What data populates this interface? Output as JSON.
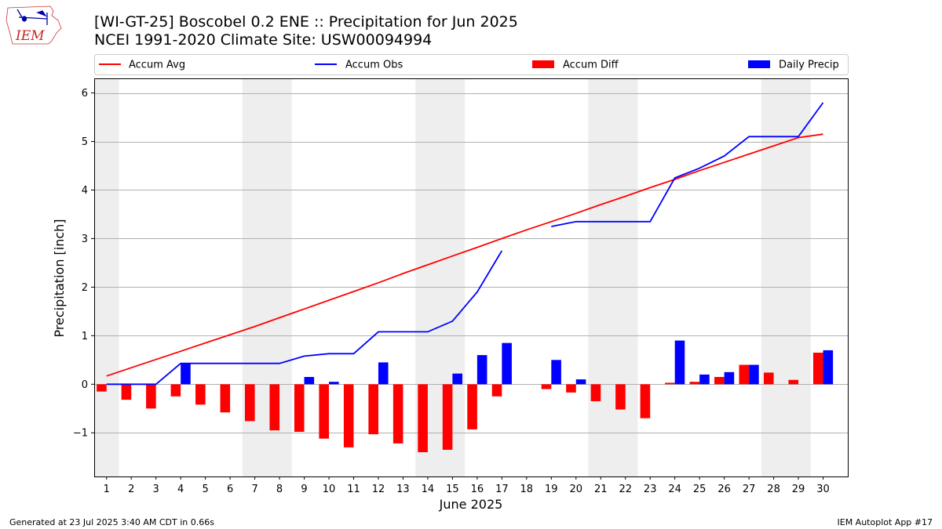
{
  "header": {
    "title": "[WI-GT-25] Boscobel 0.2 ENE :: Precipitation for Jun 2025",
    "subtitle": "NCEI 1991-2020 Climate Site: USW00094994"
  },
  "logo": {
    "text": "IEM",
    "icon": "iowa-state-outline-logo"
  },
  "footer": {
    "generated": "Generated at 23 Jul 2025 3:40 AM CDT in 0.66s",
    "app": "IEM Autoplot App #17"
  },
  "colors": {
    "avg": "#ff0000",
    "obs": "#0000ff",
    "diff": "#ff0000",
    "daily": "#0000ff",
    "weekend_band": "#eeeeee",
    "grid": "#b0b0b0"
  },
  "chart_data": {
    "type": "bar",
    "title": "[WI-GT-25] Boscobel 0.2 ENE :: Precipitation for Jun 2025",
    "xlabel": "June 2025",
    "ylabel": "Precipitation [inch]",
    "xlim": [
      0.5,
      31
    ],
    "ylim": [
      -1.9,
      6.3
    ],
    "x": [
      1,
      2,
      3,
      4,
      5,
      6,
      7,
      8,
      9,
      10,
      11,
      12,
      13,
      14,
      15,
      16,
      17,
      18,
      19,
      20,
      21,
      22,
      23,
      24,
      25,
      26,
      27,
      28,
      29,
      30
    ],
    "x_tick_labels": [
      "1",
      "2",
      "3",
      "4",
      "5",
      "6",
      "7",
      "8",
      "9",
      "10",
      "11",
      "12",
      "13",
      "14",
      "15",
      "16",
      "17",
      "18",
      "19",
      "20",
      "21",
      "22",
      "23",
      "24",
      "25",
      "26",
      "27",
      "28",
      "29",
      "30"
    ],
    "y_ticks": [
      -1,
      0,
      1,
      2,
      3,
      4,
      5,
      6
    ],
    "y_tick_labels": [
      "−1",
      "0",
      "1",
      "2",
      "3",
      "4",
      "5",
      "6"
    ],
    "grid": "y",
    "legend_position": "top",
    "shaded_weekend_ranges": [
      [
        0.5,
        1.5
      ],
      [
        6.5,
        8.5
      ],
      [
        13.5,
        15.5
      ],
      [
        20.5,
        22.5
      ],
      [
        27.5,
        29.5
      ]
    ],
    "series": [
      {
        "name": "Accum Avg",
        "kind": "line",
        "color": "#ff0000",
        "values": [
          0.17,
          0.34,
          0.51,
          0.68,
          0.85,
          1.02,
          1.19,
          1.37,
          1.55,
          1.73,
          1.91,
          2.09,
          2.28,
          2.46,
          2.64,
          2.82,
          3.0,
          3.18,
          3.35,
          3.52,
          3.7,
          3.87,
          4.05,
          4.22,
          4.4,
          4.57,
          4.74,
          4.91,
          5.08,
          5.15
        ]
      },
      {
        "name": "Accum Obs",
        "kind": "line",
        "color": "#0000ff",
        "values": [
          0.0,
          0.0,
          0.0,
          0.43,
          0.43,
          0.43,
          0.43,
          0.43,
          0.58,
          0.63,
          0.63,
          1.08,
          1.08,
          1.08,
          1.3,
          1.9,
          2.75,
          null,
          3.25,
          3.35,
          3.35,
          3.35,
          3.35,
          4.25,
          4.45,
          4.7,
          5.1,
          5.1,
          5.1,
          5.8
        ]
      },
      {
        "name": "Accum Diff",
        "kind": "bar",
        "color": "#ff0000",
        "values": [
          -0.15,
          -0.32,
          -0.5,
          -0.25,
          -0.42,
          -0.58,
          -0.76,
          -0.95,
          -0.98,
          -1.12,
          -1.3,
          -1.03,
          -1.22,
          -1.4,
          -1.35,
          -0.93,
          -0.25,
          null,
          -0.1,
          -0.17,
          -0.35,
          -0.52,
          -0.7,
          0.03,
          0.05,
          0.15,
          0.4,
          0.24,
          0.09,
          0.65
        ]
      },
      {
        "name": "Daily Precip",
        "kind": "bar",
        "color": "#0000ff",
        "values": [
          0.0,
          0.0,
          0.0,
          0.43,
          0.0,
          0.0,
          0.0,
          0.0,
          0.15,
          0.05,
          0.0,
          0.45,
          0.0,
          0.0,
          0.22,
          0.6,
          0.85,
          null,
          0.5,
          0.1,
          0.0,
          0.0,
          0.0,
          0.9,
          0.2,
          0.25,
          0.4,
          0.0,
          0.0,
          0.7
        ]
      }
    ]
  }
}
